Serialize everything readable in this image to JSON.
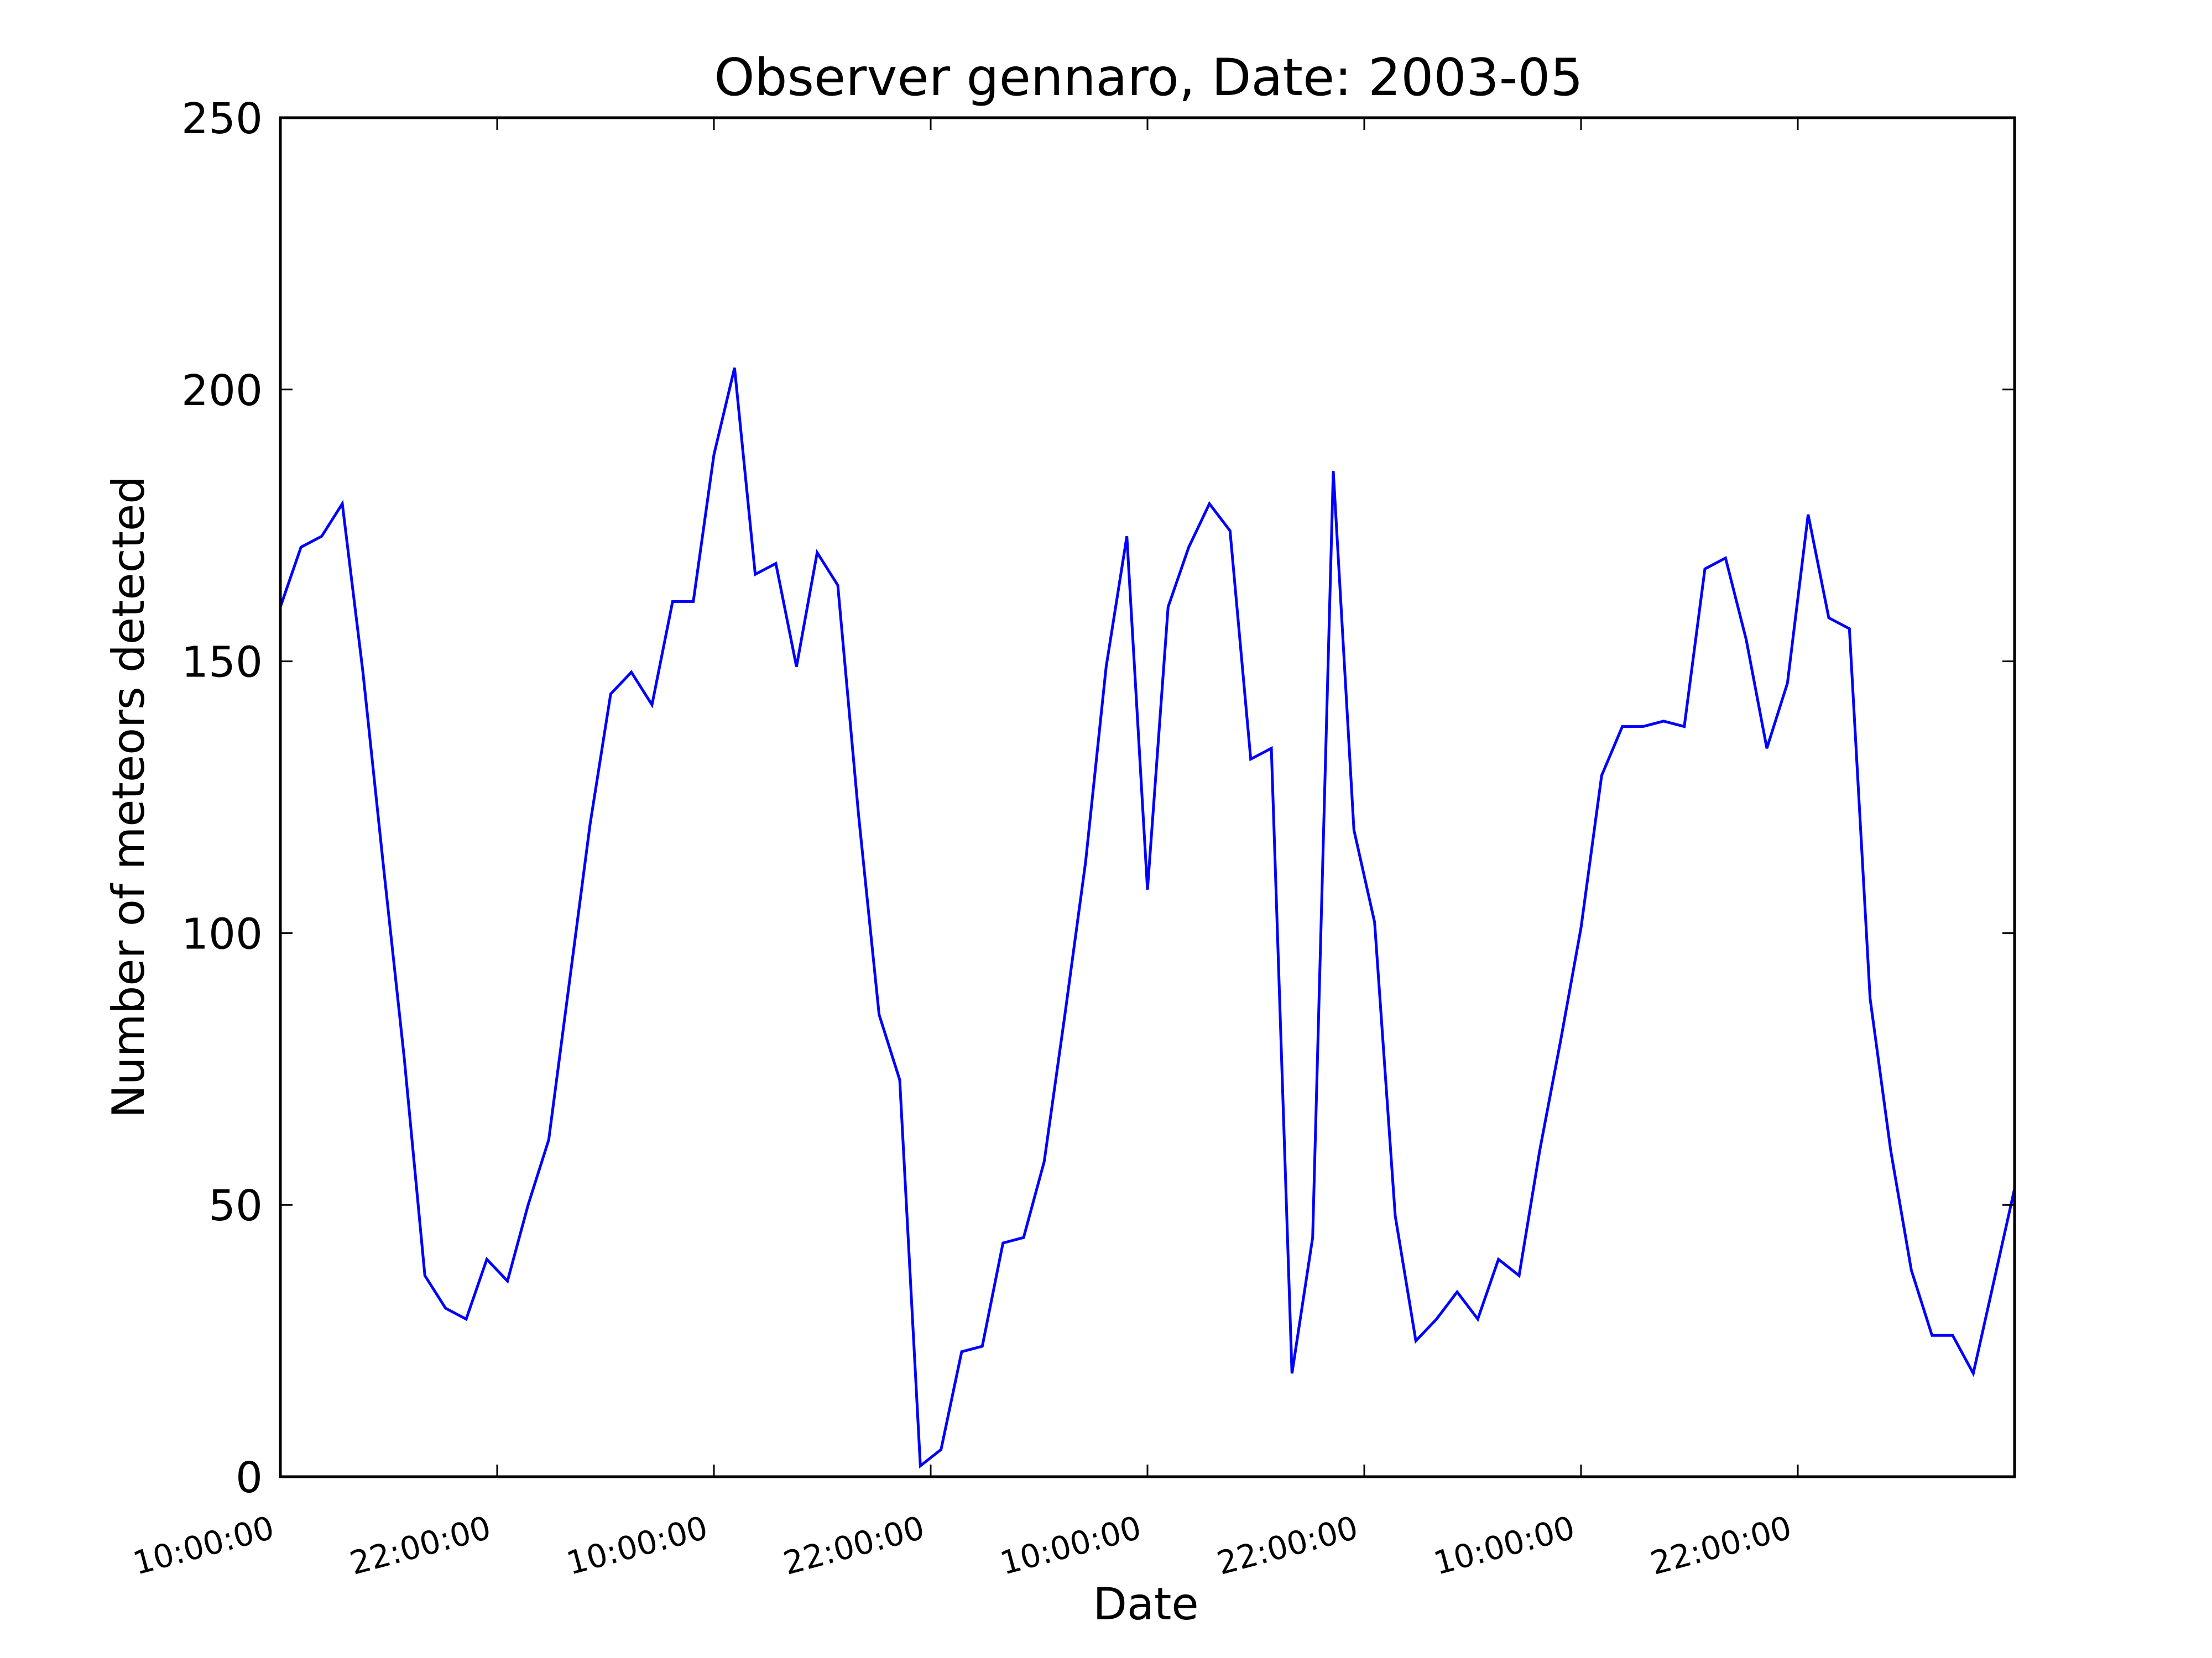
{
  "chart_data": {
    "type": "line",
    "title": "Observer gennaro, Date: 2003-05",
    "xlabel": "Date",
    "ylabel": "Number of meteors detected",
    "ylim": [
      0,
      250
    ],
    "yticks": [
      0,
      50,
      100,
      150,
      200,
      250
    ],
    "xlim_hours": [
      0,
      84
    ],
    "x_unit": "hours",
    "xtick_labels": [
      "10:00:00",
      "22:00:00",
      "10:00:00",
      "22:00:00",
      "10:00:00",
      "22:00:00",
      "10:00:00",
      "22:00:00"
    ],
    "grid": false,
    "legend": "none",
    "series": [
      {
        "color": "#0000ff",
        "x": [
          0,
          1,
          2,
          3,
          4,
          5,
          6,
          7,
          8,
          9,
          10,
          11,
          12,
          13,
          14,
          15,
          16,
          17,
          18,
          19,
          20,
          21,
          22,
          23,
          24,
          25,
          26,
          27,
          28,
          29,
          30,
          31,
          32,
          33,
          34,
          35,
          36,
          37,
          38,
          39,
          40,
          41,
          42,
          43,
          44,
          45,
          46,
          47,
          48,
          49,
          50,
          51,
          52,
          53,
          54,
          55,
          56,
          57,
          58,
          59,
          60,
          61,
          62,
          63,
          64,
          65,
          66,
          67,
          68,
          69,
          70,
          71,
          72,
          73,
          74,
          75,
          76,
          77,
          78,
          79,
          80,
          81,
          82,
          83,
          84
        ],
        "values": [
          160,
          171,
          173,
          179,
          148,
          112,
          77,
          37,
          31,
          29,
          40,
          36,
          50,
          62,
          91,
          120,
          144,
          148,
          142,
          161,
          161,
          188,
          204,
          166,
          168,
          149,
          170,
          164,
          122,
          85,
          73,
          2,
          5,
          23,
          24,
          43,
          44,
          58,
          85,
          113,
          149,
          173,
          108,
          160,
          171,
          179,
          174,
          132,
          134,
          19,
          44,
          185,
          119,
          102,
          48,
          25,
          29,
          34,
          29,
          40,
          37,
          60,
          80,
          101,
          129,
          138,
          138,
          139,
          138,
          167,
          169,
          154,
          134,
          146,
          177,
          158,
          156,
          88,
          60,
          38,
          26,
          26,
          19,
          36,
          53
        ]
      }
    ]
  }
}
